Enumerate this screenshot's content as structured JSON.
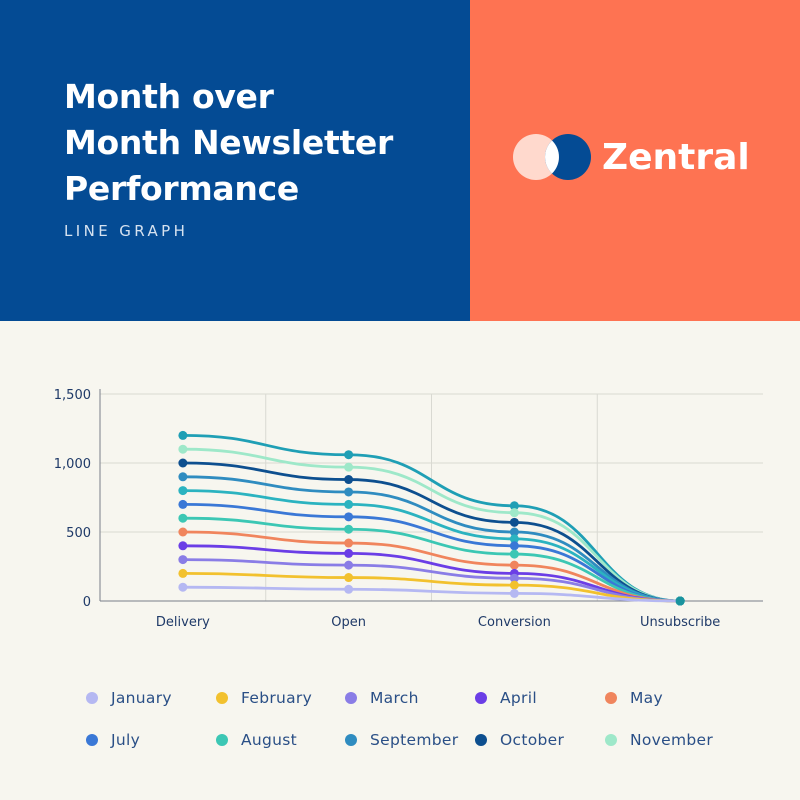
{
  "header": {
    "title_lines": [
      "Month over",
      "Month Newsletter",
      "Performance"
    ],
    "subtitle": "LINE GRAPH",
    "brand": "Zentral",
    "colors": {
      "left_panel": "#044b94",
      "right_panel": "#fe7352",
      "logo_light": "#ffd9cd",
      "logo_dark": "#044b94"
    }
  },
  "chart_data": {
    "type": "line",
    "curve": "smooth",
    "categories": [
      "Delivery",
      "Open",
      "Conversion",
      "Unsubscribe"
    ],
    "ylim": [
      0,
      1500
    ],
    "yticks": [
      0,
      500,
      1000,
      1500
    ],
    "ytick_labels": [
      "0",
      "500",
      "1,000",
      "1,500"
    ],
    "grid": true,
    "legend_position": "bottom",
    "series": [
      {
        "name": "January",
        "color": "#b5b8f2",
        "values": [
          100,
          85,
          55,
          0
        ]
      },
      {
        "name": "February",
        "color": "#f2c12e",
        "values": [
          200,
          170,
          115,
          0
        ]
      },
      {
        "name": "March",
        "color": "#8a7de6",
        "values": [
          300,
          260,
          165,
          0
        ]
      },
      {
        "name": "April",
        "color": "#6b3ee6",
        "values": [
          400,
          345,
          200,
          0
        ]
      },
      {
        "name": "May",
        "color": "#f0855d",
        "values": [
          500,
          420,
          260,
          0
        ]
      },
      {
        "name": "July",
        "color": "#3a78d6",
        "values": [
          700,
          610,
          400,
          0
        ]
      },
      {
        "name": "August",
        "color": "#3cc7b4",
        "values": [
          600,
          520,
          340,
          0
        ]
      },
      {
        "name": "September",
        "color": "#2f8cc0",
        "values": [
          900,
          790,
          500,
          0
        ]
      },
      {
        "name": "October",
        "color": "#0d4f8f",
        "values": [
          1000,
          880,
          570,
          0
        ]
      },
      {
        "name": "November",
        "color": "#9ee8c9",
        "values": [
          1100,
          970,
          640,
          0
        ]
      },
      {
        "name": "",
        "color": "#2bb3c0",
        "values": [
          800,
          700,
          450,
          0
        ]
      },
      {
        "name": "",
        "color": "#1f9fb5",
        "values": [
          1200,
          1060,
          690,
          0
        ]
      }
    ]
  },
  "legend": [
    {
      "label": "January",
      "color": "#b5b8f2"
    },
    {
      "label": "February",
      "color": "#f2c12e"
    },
    {
      "label": "March",
      "color": "#8a7de6"
    },
    {
      "label": "April",
      "color": "#6b3ee6"
    },
    {
      "label": "May",
      "color": "#f0855d"
    },
    {
      "label": "July",
      "color": "#3a78d6"
    },
    {
      "label": "August",
      "color": "#3cc7b4"
    },
    {
      "label": "September",
      "color": "#2f8cc0"
    },
    {
      "label": "October",
      "color": "#0d4f8f"
    },
    {
      "label": "November",
      "color": "#9ee8c9"
    }
  ]
}
